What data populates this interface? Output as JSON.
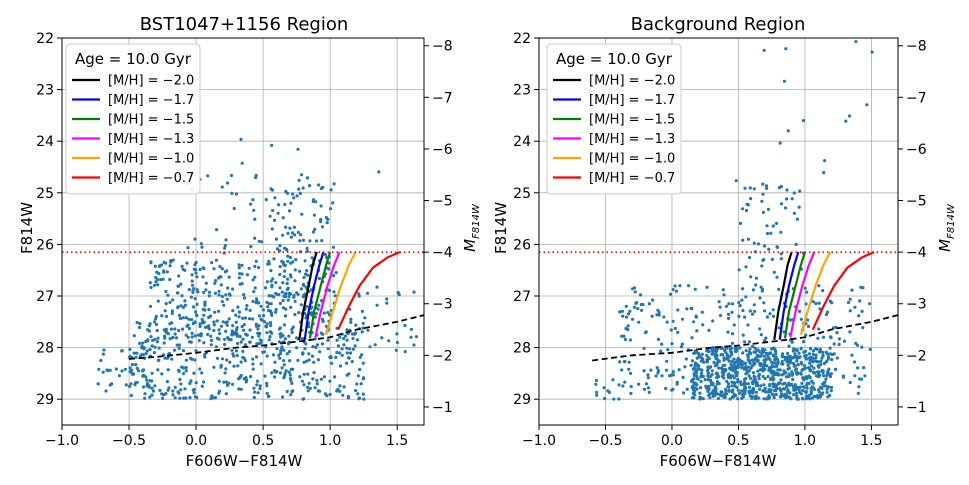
{
  "chart_data": [
    {
      "type": "scatter",
      "title": "BST1047+1156 Region",
      "xlabel": "F606W−F814W",
      "ylabel": "F814W",
      "ylabel_right_main": "M",
      "ylabel_right_sub": "F814W",
      "xlim": [
        -1.0,
        1.7
      ],
      "ylim": [
        29.5,
        22.0
      ],
      "x_ticks": [
        -1.0,
        -0.5,
        0.0,
        0.5,
        1.0,
        1.5
      ],
      "x_tick_labels": [
        "−1.0",
        "−0.5",
        "0.0",
        "0.5",
        "1.0",
        "1.5"
      ],
      "y_ticks": [
        22,
        23,
        24,
        25,
        26,
        27,
        28,
        29
      ],
      "y_tick_labels": [
        "22",
        "23",
        "24",
        "25",
        "26",
        "27",
        "28",
        "29"
      ],
      "right_ticks": [
        -8,
        -7,
        -6,
        -5,
        -4,
        -3,
        -2,
        -1
      ],
      "right_tick_labels": [
        "−8",
        "−7",
        "−6",
        "−5",
        "−4",
        "−3",
        "−2",
        "−1"
      ],
      "distance_modulus": 30.15,
      "grid": true,
      "limit_mag": 26.15,
      "completeness_curve": [
        [
          -0.5,
          28.22
        ],
        [
          -0.3,
          28.18
        ],
        [
          0.0,
          28.1
        ],
        [
          0.3,
          28.0
        ],
        [
          0.5,
          27.96
        ],
        [
          0.8,
          27.87
        ],
        [
          1.0,
          27.8
        ],
        [
          1.2,
          27.65
        ],
        [
          1.5,
          27.5
        ],
        [
          1.7,
          27.37
        ]
      ],
      "legend": {
        "title": "Age = 10.0 Gyr",
        "placement": "upper-left",
        "entries": [
          {
            "label": "[M/H] = −2.0",
            "color": "#000000"
          },
          {
            "label": "[M/H] = −1.7",
            "color": "#0000ff"
          },
          {
            "label": "[M/H] = −1.5",
            "color": "#008000"
          },
          {
            "label": "[M/H] = −1.3",
            "color": "#ff00ff"
          },
          {
            "label": "[M/H] = −1.0",
            "color": "#ffa500"
          },
          {
            "label": "[M/H] = −0.7",
            "color": "#ff0000"
          }
        ]
      },
      "isochrones": [
        {
          "name": "[M/H] = −2.0",
          "color": "#000000",
          "points": [
            [
              0.77,
              27.85
            ],
            [
              0.8,
              27.3
            ],
            [
              0.84,
              26.8
            ],
            [
              0.87,
              26.4
            ],
            [
              0.9,
              26.15
            ]
          ]
        },
        {
          "name": "[M/H] = −1.7",
          "color": "#0000ff",
          "points": [
            [
              0.81,
              27.85
            ],
            [
              0.84,
              27.3
            ],
            [
              0.88,
              26.8
            ],
            [
              0.92,
              26.4
            ],
            [
              0.95,
              26.15
            ]
          ]
        },
        {
          "name": "[M/H] = −1.5",
          "color": "#008000",
          "points": [
            [
              0.85,
              27.82
            ],
            [
              0.88,
              27.3
            ],
            [
              0.93,
              26.8
            ],
            [
              0.97,
              26.4
            ],
            [
              1.0,
              26.15
            ]
          ]
        },
        {
          "name": "[M/H] = −1.3",
          "color": "#ff00ff",
          "points": [
            [
              0.89,
              27.8
            ],
            [
              0.93,
              27.3
            ],
            [
              0.98,
              26.8
            ],
            [
              1.03,
              26.4
            ],
            [
              1.07,
              26.15
            ]
          ]
        },
        {
          "name": "[M/H] = −1.0",
          "color": "#ffa500",
          "points": [
            [
              0.97,
              27.75
            ],
            [
              1.02,
              27.3
            ],
            [
              1.08,
              26.8
            ],
            [
              1.14,
              26.4
            ],
            [
              1.19,
              26.15
            ]
          ]
        },
        {
          "name": "[M/H] = −0.7",
          "color": "#ff0000",
          "points": [
            [
              1.06,
              27.65
            ],
            [
              1.14,
              27.2
            ],
            [
              1.22,
              26.8
            ],
            [
              1.32,
              26.45
            ],
            [
              1.43,
              26.25
            ],
            [
              1.52,
              26.15
            ]
          ]
        }
      ],
      "scatter": {
        "color": "#1f77b4",
        "groups": [
          {
            "n": 450,
            "x": [
              -0.5,
              1.25
            ],
            "y": [
              27.5,
              29.0
            ]
          },
          {
            "n": 350,
            "x": [
              -0.35,
              1.0
            ],
            "y": [
              26.3,
              27.9
            ]
          },
          {
            "n": 110,
            "x": [
              0.55,
              1.05
            ],
            "y": [
              24.8,
              27.5
            ]
          },
          {
            "n": 50,
            "x": [
              -0.1,
              0.9
            ],
            "y": [
              24.5,
              26.5
            ]
          },
          {
            "n": 25,
            "x": [
              -0.75,
              -0.45
            ],
            "y": [
              28.0,
              29.0
            ]
          },
          {
            "n": 30,
            "x": [
              1.1,
              1.65
            ],
            "y": [
              26.8,
              28.2
            ]
          },
          {
            "n": 6,
            "x": [
              0.1,
              1.65
            ],
            "y": [
              23.9,
              24.8
            ]
          }
        ]
      }
    },
    {
      "type": "scatter",
      "title": "Background Region",
      "xlabel": "F606W−F814W",
      "ylabel": "F814W",
      "ylabel_right_main": "M",
      "ylabel_right_sub": "F814W",
      "xlim": [
        -1.0,
        1.7
      ],
      "ylim": [
        29.5,
        22.0
      ],
      "x_ticks": [
        -1.0,
        -0.5,
        0.0,
        0.5,
        1.0,
        1.5
      ],
      "x_tick_labels": [
        "−1.0",
        "−0.5",
        "0.0",
        "0.5",
        "1.0",
        "1.5"
      ],
      "y_ticks": [
        22,
        23,
        24,
        25,
        26,
        27,
        28,
        29
      ],
      "y_tick_labels": [
        "22",
        "23",
        "24",
        "25",
        "26",
        "27",
        "28",
        "29"
      ],
      "right_ticks": [
        -8,
        -7,
        -6,
        -5,
        -4,
        -3,
        -2,
        -1
      ],
      "right_tick_labels": [
        "−8",
        "−7",
        "−6",
        "−5",
        "−4",
        "−3",
        "−2",
        "−1"
      ],
      "distance_modulus": 30.15,
      "grid": true,
      "limit_mag": 26.15,
      "completeness_curve": [
        [
          -0.6,
          28.25
        ],
        [
          -0.3,
          28.15
        ],
        [
          0.0,
          28.1
        ],
        [
          0.3,
          28.0
        ],
        [
          0.5,
          27.96
        ],
        [
          0.8,
          27.87
        ],
        [
          1.0,
          27.8
        ],
        [
          1.2,
          27.65
        ],
        [
          1.5,
          27.5
        ],
        [
          1.7,
          27.37
        ]
      ],
      "legend": {
        "title": "Age = 10.0 Gyr",
        "placement": "upper-left",
        "entries": [
          {
            "label": "[M/H] = −2.0",
            "color": "#000000"
          },
          {
            "label": "[M/H] = −1.7",
            "color": "#0000ff"
          },
          {
            "label": "[M/H] = −1.5",
            "color": "#008000"
          },
          {
            "label": "[M/H] = −1.3",
            "color": "#ff00ff"
          },
          {
            "label": "[M/H] = −1.0",
            "color": "#ffa500"
          },
          {
            "label": "[M/H] = −0.7",
            "color": "#ff0000"
          }
        ]
      },
      "isochrones": [
        {
          "name": "[M/H] = −2.0",
          "color": "#000000",
          "points": [
            [
              0.77,
              27.85
            ],
            [
              0.8,
              27.3
            ],
            [
              0.84,
              26.8
            ],
            [
              0.87,
              26.4
            ],
            [
              0.9,
              26.15
            ]
          ]
        },
        {
          "name": "[M/H] = −1.7",
          "color": "#0000ff",
          "points": [
            [
              0.81,
              27.85
            ],
            [
              0.84,
              27.3
            ],
            [
              0.88,
              26.8
            ],
            [
              0.92,
              26.4
            ],
            [
              0.95,
              26.15
            ]
          ]
        },
        {
          "name": "[M/H] = −1.5",
          "color": "#008000",
          "points": [
            [
              0.85,
              27.82
            ],
            [
              0.88,
              27.3
            ],
            [
              0.93,
              26.8
            ],
            [
              0.97,
              26.4
            ],
            [
              1.0,
              26.15
            ]
          ]
        },
        {
          "name": "[M/H] = −1.3",
          "color": "#ff00ff",
          "points": [
            [
              0.89,
              27.8
            ],
            [
              0.93,
              27.3
            ],
            [
              0.98,
              26.8
            ],
            [
              1.03,
              26.4
            ],
            [
              1.07,
              26.15
            ]
          ]
        },
        {
          "name": "[M/H] = −1.0",
          "color": "#ffa500",
          "points": [
            [
              0.97,
              27.75
            ],
            [
              1.02,
              27.3
            ],
            [
              1.08,
              26.8
            ],
            [
              1.14,
              26.4
            ],
            [
              1.19,
              26.15
            ]
          ]
        },
        {
          "name": "[M/H] = −0.7",
          "color": "#ff0000",
          "points": [
            [
              1.06,
              27.65
            ],
            [
              1.14,
              27.2
            ],
            [
              1.22,
              26.8
            ],
            [
              1.32,
              26.45
            ],
            [
              1.43,
              26.25
            ],
            [
              1.52,
              26.15
            ]
          ]
        }
      ],
      "scatter": {
        "color": "#1f77b4",
        "groups": [
          {
            "n": 700,
            "x": [
              0.15,
              1.2
            ],
            "y": [
              28.0,
              29.0
            ]
          },
          {
            "n": 320,
            "x": [
              -0.4,
              1.5
            ],
            "y": [
              26.8,
              28.9
            ]
          },
          {
            "n": 60,
            "x": [
              0.5,
              1.0
            ],
            "y": [
              24.8,
              26.8
            ]
          },
          {
            "n": 15,
            "x": [
              -0.6,
              -0.3
            ],
            "y": [
              28.6,
              29.0
            ]
          },
          {
            "n": 14,
            "x": [
              0.45,
              1.55
            ],
            "y": [
              22.0,
              24.8
            ]
          }
        ]
      }
    }
  ]
}
